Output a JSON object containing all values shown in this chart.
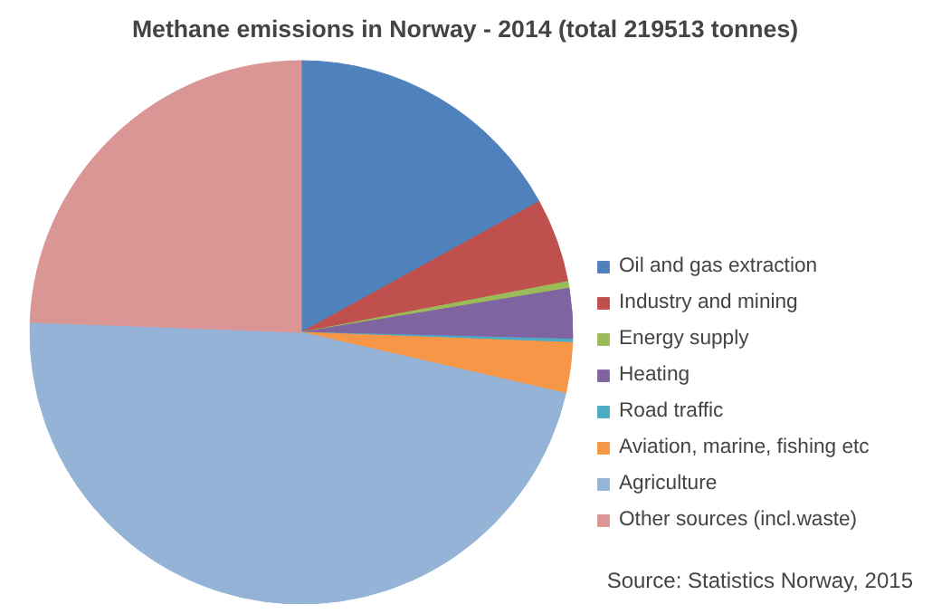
{
  "chart_data": {
    "type": "pie",
    "title": "Methane emissions in Norway - 2014 (total 219513 tonnes)",
    "categories": [
      "Oil and gas extraction",
      "Industry and mining",
      "Energy supply",
      "Heating",
      "Road traffic",
      "Aviation, marine, fishing etc",
      "Agriculture",
      "Other sources (incl.waste)"
    ],
    "values": [
      17,
      5,
      0.4,
      3,
      0.2,
      3,
      47,
      24.4
    ],
    "colors": [
      "#4f81bd",
      "#c0504d",
      "#9bbb59",
      "#8064a2",
      "#4bacc6",
      "#f79646",
      "#95b3d7",
      "#d99694"
    ],
    "legend": "right",
    "annotations": [
      "Source: Statistics Norway, 2015"
    ]
  }
}
